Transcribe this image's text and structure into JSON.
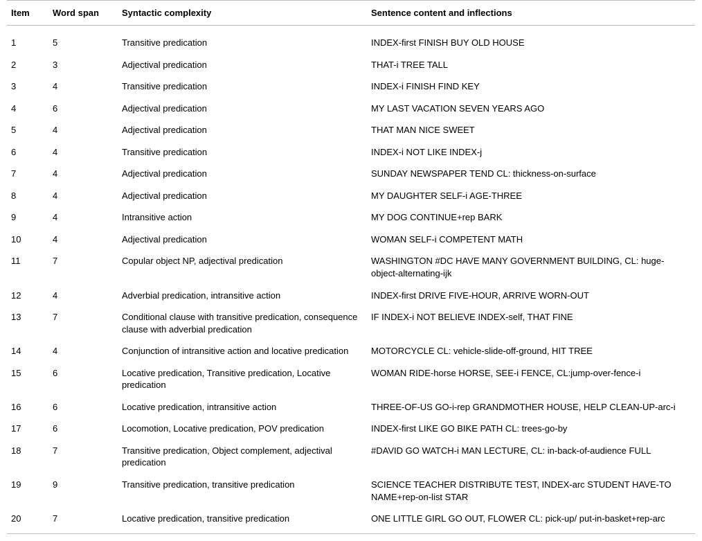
{
  "table": {
    "columns": [
      "Item",
      "Word span",
      "Syntactic complexity",
      "Sentence content and inflections"
    ],
    "rows": [
      [
        "1",
        "5",
        "Transitive predication",
        "INDEX-first FINISH BUY OLD HOUSE"
      ],
      [
        "2",
        "3",
        "Adjectival predication",
        "THAT-i TREE TALL"
      ],
      [
        "3",
        "4",
        "Transitive predication",
        "INDEX-i FINISH FIND KEY"
      ],
      [
        "4",
        "6",
        "Adjectival predication",
        "MY LAST VACATION SEVEN YEARS AGO"
      ],
      [
        "5",
        "4",
        "Adjectival predication",
        "THAT MAN NICE SWEET"
      ],
      [
        "6",
        "4",
        "Transitive predication",
        "INDEX-i NOT LIKE INDEX-j"
      ],
      [
        "7",
        "4",
        "Adjectival predication",
        "SUNDAY NEWSPAPER TEND CL: thickness-on-surface"
      ],
      [
        "8",
        "4",
        "Adjectival predication",
        "MY DAUGHTER SELF-i AGE-THREE"
      ],
      [
        "9",
        "4",
        "Intransitive action",
        "MY DOG CONTINUE+rep BARK"
      ],
      [
        "10",
        "4",
        "Adjectival predication",
        "WOMAN SELF-i COMPETENT MATH"
      ],
      [
        "11",
        "7",
        "Copular object NP, adjectival predication",
        "WASHINGTON #DC HAVE MANY GOVERNMENT BUILDING, CL: huge-object-alternating-ijk"
      ],
      [
        "12",
        "4",
        "Adverbial predication, intransitive action",
        "INDEX-first DRIVE FIVE-HOUR, ARRIVE WORN-OUT"
      ],
      [
        "13",
        "7",
        "Conditional clause with transitive predication, consequence clause with adverbial predication",
        "IF INDEX-i NOT BELIEVE INDEX-self, THAT FINE"
      ],
      [
        "14",
        "4",
        "Conjunction of intransitive action and locative predication",
        "MOTORCYCLE CL: vehicle-slide-off-ground, HIT TREE"
      ],
      [
        "15",
        "6",
        "Locative predication, Transitive predication, Locative predication",
        "WOMAN RIDE-horse HORSE, SEE-i FENCE, CL:jump-over-fence-i"
      ],
      [
        "16",
        "6",
        "Locative predication, intransitive action",
        "THREE-OF-US GO-i-rep GRANDMOTHER HOUSE, HELP CLEAN-UP-arc-i"
      ],
      [
        "17",
        "6",
        "Locomotion, Locative predication, POV predication",
        "INDEX-first LIKE GO BIKE PATH CL: trees-go-by"
      ],
      [
        "18",
        "7",
        "Transitive predication, Object complement, adjectival predication",
        "#DAVID GO WATCH-i MAN LECTURE, CL: in-back-of-audience FULL"
      ],
      [
        "19",
        "9",
        "Transitive predication, transitive predication",
        "SCIENCE TEACHER DISTRIBUTE TEST, INDEX-arc STUDENT HAVE-TO NAME+rep-on-list STAR"
      ],
      [
        "20",
        "7",
        "Locative predication, transitive predication",
        "ONE LITTLE GIRL GO OUT, FLOWER CL: pick-up/ put-in-basket+rep-arc"
      ]
    ]
  }
}
